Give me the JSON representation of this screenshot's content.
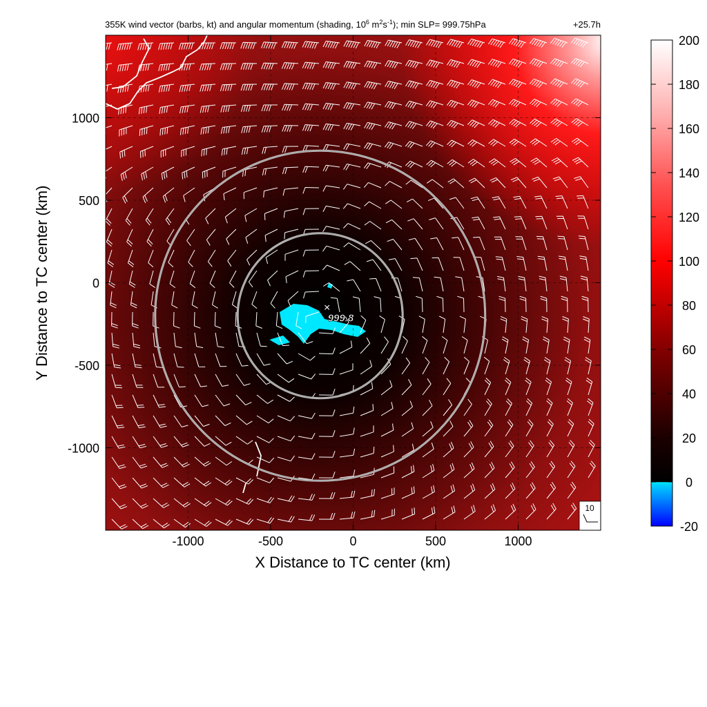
{
  "chart_data": {
    "type": "heatmap",
    "title": "355K wind vector (barbs, kt) and angular momentum (shading, 10",
    "title_exp1": "6",
    "title_mid1": " m",
    "title_exp2": "2",
    "title_mid2": "s",
    "title_exp3": "-1",
    "title_tail": "); min SLP= 999.75hPa",
    "time_label": "+25.7h",
    "xlabel": "X Distance to TC center (km)",
    "ylabel": "Y Distance to TC center (km)",
    "xlim": [
      -1500,
      1500
    ],
    "ylim": [
      -1500,
      1500
    ],
    "x_ticks": [
      -1000,
      -500,
      0,
      500,
      1000
    ],
    "y_ticks": [
      -1000,
      -500,
      0,
      500,
      1000
    ],
    "x_tick_labels": [
      "-1000",
      "-500",
      "0",
      "500",
      "1000"
    ],
    "y_tick_labels": [
      "-1000",
      "-500",
      "0",
      "500",
      "1000"
    ],
    "colorbar": {
      "min": -20,
      "max": 200,
      "ticks": [
        -20,
        0,
        20,
        40,
        60,
        80,
        100,
        120,
        140,
        160,
        180,
        200
      ],
      "tick_labels": [
        "-20",
        "0",
        "20",
        "40",
        "60",
        "80",
        "100",
        "120",
        "140",
        "160",
        "180",
        "200"
      ]
    },
    "minimum_low": {
      "label": "999.8",
      "x": -200,
      "y": -200
    },
    "range_rings": [
      {
        "center_x": -200,
        "center_y": -200,
        "radius": 500
      },
      {
        "center_x": -200,
        "center_y": -200,
        "radius": 1000
      }
    ],
    "reference_vector_label": "10",
    "grid": "dashed",
    "colors": {
      "negative": "#0000ff",
      "near_zero": "#00e0ff",
      "low": "#000000",
      "mid": "#e00000",
      "high": "#ffffff"
    }
  }
}
